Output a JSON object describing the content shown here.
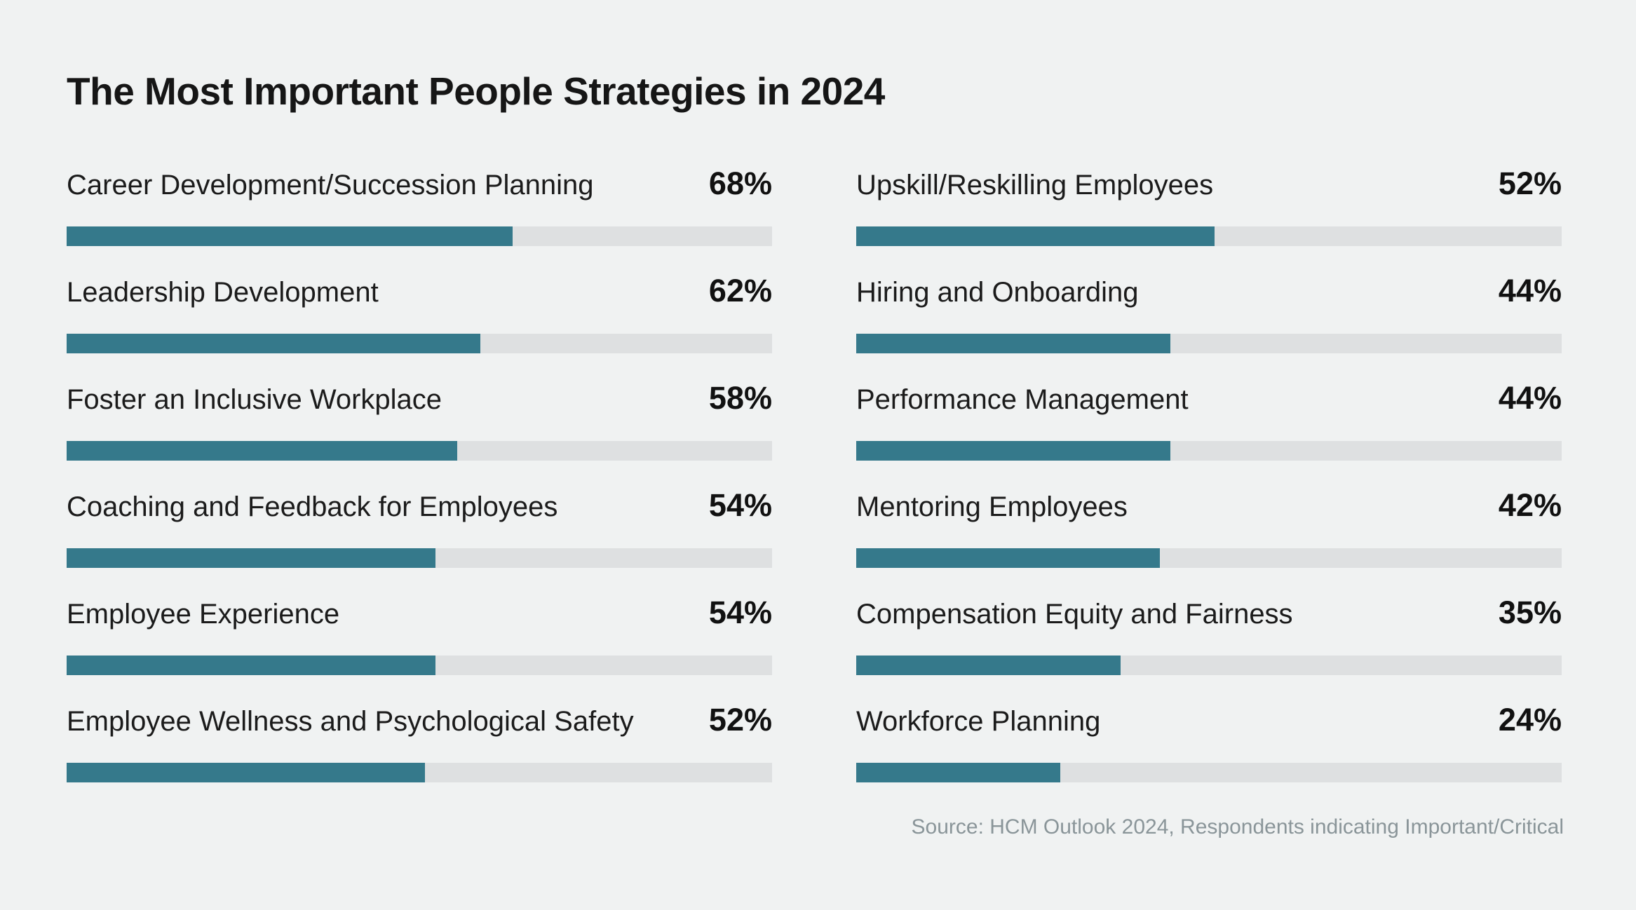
{
  "colors": {
    "background": "#F0F2F2",
    "bar_fill": "#35798B",
    "bar_track": "#DEE0E1",
    "title_text": "#161616",
    "label_text": "#1B1B1B",
    "source_text": "#8A9599"
  },
  "chart_data": {
    "type": "bar",
    "orientation": "horizontal",
    "title": "The Most Important People Strategies in 2024",
    "unit": "%",
    "value_range": [
      0,
      100
    ],
    "legend": "none",
    "grid": "off",
    "layout": "two-column list of label + percentage with progress-style bars",
    "columns": [
      {
        "name": "left",
        "items": [
          {
            "label": "Career Development/Succession Planning",
            "value": 68,
            "display": "68%"
          },
          {
            "label": "Leadership Development",
            "value": 62,
            "display": "62%"
          },
          {
            "label": "Foster an Inclusive Workplace",
            "value": 58,
            "display": "58%"
          },
          {
            "label": "Coaching and Feedback for Employees",
            "value": 54,
            "display": "54%"
          },
          {
            "label": "Employee Experience",
            "value": 54,
            "display": "54%"
          },
          {
            "label": "Employee Wellness and Psychological Safety",
            "value": 52,
            "display": "52%"
          }
        ]
      },
      {
        "name": "right",
        "items": [
          {
            "label": "Upskill/Reskilling Employees",
            "value": 52,
            "display": "52%"
          },
          {
            "label": "Hiring and Onboarding",
            "value": 44,
            "display": "44%"
          },
          {
            "label": "Performance Management",
            "value": 44,
            "display": "44%"
          },
          {
            "label": "Mentoring Employees",
            "value": 42,
            "display": "42%"
          },
          {
            "label": "Compensation Equity and Fairness",
            "value": 35,
            "display": "35%"
          },
          {
            "label": "Workforce Planning",
            "value": 24,
            "display": "24%"
          }
        ]
      }
    ],
    "source": "Source: HCM Outlook 2024, Respondents indicating Important/Critical"
  }
}
